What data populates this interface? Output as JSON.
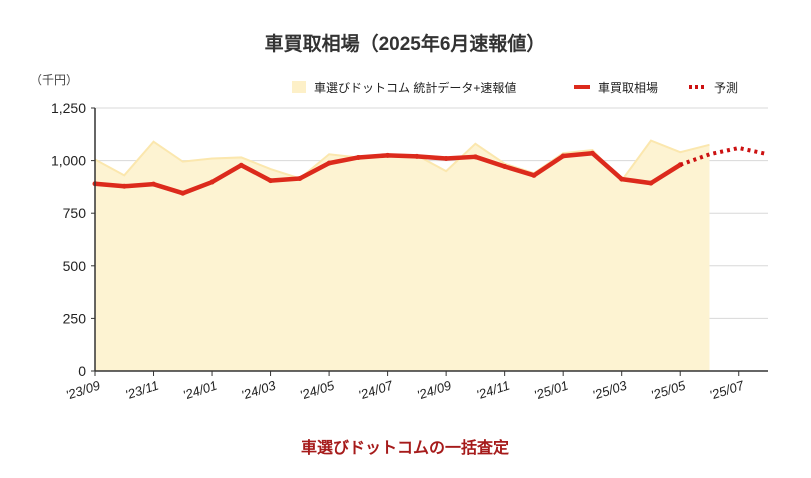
{
  "chart_data": {
    "type": "line",
    "title": "車買取相場（2025年6月速報値）",
    "y_unit": "（千円）",
    "ylim": [
      0,
      1250
    ],
    "yticks": [
      0,
      250,
      500,
      750,
      1000,
      1250
    ],
    "ytick_labels": [
      "0",
      "250",
      "500",
      "750",
      "1,000",
      "1,250"
    ],
    "x": [
      "'23/09",
      "'23/10",
      "'23/11",
      "'23/12",
      "'24/01",
      "'24/02",
      "'24/03",
      "'24/04",
      "'24/05",
      "'24/06",
      "'24/07",
      "'24/08",
      "'24/09",
      "'24/10",
      "'24/11",
      "'24/12",
      "'25/01",
      "'25/02",
      "'25/03",
      "'25/04",
      "'25/05",
      "'25/06",
      "'25/07",
      "'25/08"
    ],
    "xtick_labels": [
      "'23/09",
      "'23/11",
      "'24/01",
      "'24/03",
      "'24/05",
      "'24/07",
      "'24/09",
      "'24/11",
      "'25/01",
      "'25/03",
      "'25/05",
      "'25/07"
    ],
    "series": [
      {
        "name": "車選びドットコム 統計データ+速報値",
        "style": "area",
        "color": "#fdf3d2",
        "values": [
          1005,
          930,
          1090,
          995,
          1010,
          1015,
          960,
          915,
          1030,
          1015,
          1030,
          1025,
          950,
          1080,
          985,
          940,
          1035,
          1050,
          905,
          1095,
          1040,
          1075,
          null,
          null
        ]
      },
      {
        "name": "車買取相場",
        "style": "line",
        "color": "#dc2a1c",
        "values": [
          890,
          878,
          888,
          845,
          898,
          978,
          905,
          915,
          988,
          1015,
          1025,
          1020,
          1010,
          1018,
          972,
          930,
          1022,
          1035,
          912,
          893,
          980,
          null,
          null,
          null
        ]
      },
      {
        "name": "予測",
        "style": "dotted",
        "color": "#cc1111",
        "values": [
          null,
          null,
          null,
          null,
          null,
          null,
          null,
          null,
          null,
          null,
          null,
          null,
          null,
          null,
          null,
          null,
          null,
          null,
          null,
          null,
          980,
          1030,
          1060,
          1030
        ]
      }
    ],
    "grid": true,
    "legend_position": "top-right"
  },
  "footer": {
    "text": "車選びドットコムの一括査定"
  }
}
